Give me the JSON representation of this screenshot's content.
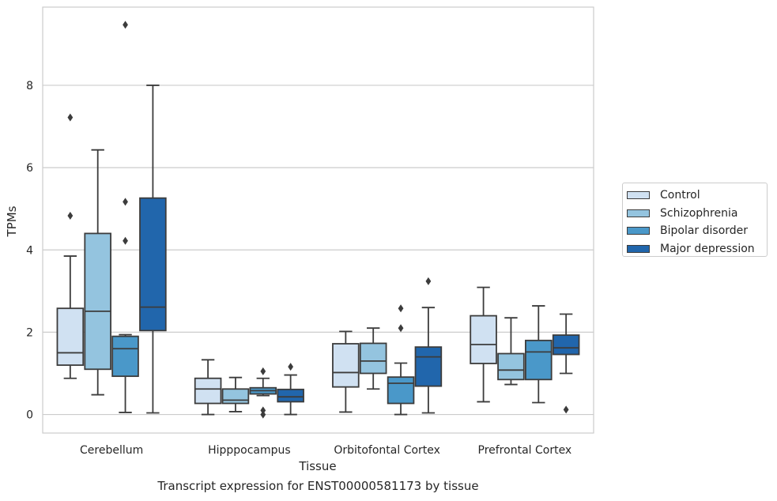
{
  "caption": "Transcript expression for ENST00000581173 by tissue",
  "chart_data": {
    "type": "box",
    "xlabel": "Tissue",
    "ylabel": "TPMs",
    "ylim": [
      -0.45,
      9.9
    ],
    "yticks": [
      0,
      2,
      4,
      6,
      8
    ],
    "grid": "horizontal",
    "legend_position": "right",
    "categories": [
      "Cerebellum",
      "Hipppocampus",
      "Orbitofontal Cortex",
      "Prefrontal Cortex"
    ],
    "series": [
      {
        "name": "Control",
        "color": "#d0e1f2",
        "boxes": [
          {
            "whislo": 0.88,
            "q1": 1.2,
            "med": 1.5,
            "q3": 2.58,
            "whishi": 3.85,
            "fliers": [
              4.83,
              7.22
            ]
          },
          {
            "whislo": 0.0,
            "q1": 0.27,
            "med": 0.62,
            "q3": 0.88,
            "whishi": 1.33,
            "fliers": []
          },
          {
            "whislo": 0.06,
            "q1": 0.67,
            "med": 1.02,
            "q3": 1.72,
            "whishi": 2.02,
            "fliers": []
          },
          {
            "whislo": 0.31,
            "q1": 1.24,
            "med": 1.7,
            "q3": 2.4,
            "whishi": 3.09,
            "fliers": []
          }
        ]
      },
      {
        "name": "Schizophrenia",
        "color": "#94c4df",
        "boxes": [
          {
            "whislo": 0.48,
            "q1": 1.1,
            "med": 2.51,
            "q3": 4.4,
            "whishi": 6.43,
            "fliers": []
          },
          {
            "whislo": 0.07,
            "q1": 0.27,
            "med": 0.35,
            "q3": 0.62,
            "whishi": 0.9,
            "fliers": []
          },
          {
            "whislo": 0.62,
            "q1": 1.0,
            "med": 1.3,
            "q3": 1.73,
            "whishi": 2.1,
            "fliers": []
          },
          {
            "whislo": 0.73,
            "q1": 0.85,
            "med": 1.08,
            "q3": 1.48,
            "whishi": 2.35,
            "fliers": []
          }
        ]
      },
      {
        "name": "Bipolar disorder",
        "color": "#4a98c9",
        "boxes": [
          {
            "whislo": 0.05,
            "q1": 0.93,
            "med": 1.6,
            "q3": 1.9,
            "whishi": 1.94,
            "fliers": [
              4.22,
              5.17,
              9.47
            ]
          },
          {
            "whislo": 0.46,
            "q1": 0.5,
            "med": 0.58,
            "q3": 0.65,
            "whishi": 0.88,
            "fliers": [
              0.0,
              0.1,
              1.05
            ]
          },
          {
            "whislo": 0.0,
            "q1": 0.27,
            "med": 0.76,
            "q3": 0.91,
            "whishi": 1.25,
            "fliers": [
              2.1,
              2.58
            ]
          },
          {
            "whislo": 0.29,
            "q1": 0.85,
            "med": 1.52,
            "q3": 1.8,
            "whishi": 2.64,
            "fliers": []
          }
        ]
      },
      {
        "name": "Major depression",
        "color": "#2166ac",
        "boxes": [
          {
            "whislo": 0.04,
            "q1": 2.04,
            "med": 2.61,
            "q3": 5.26,
            "whishi": 8.0,
            "fliers": []
          },
          {
            "whislo": 0.0,
            "q1": 0.31,
            "med": 0.43,
            "q3": 0.61,
            "whishi": 0.96,
            "fliers": [
              1.16
            ]
          },
          {
            "whislo": 0.04,
            "q1": 0.69,
            "med": 1.4,
            "q3": 1.64,
            "whishi": 2.6,
            "fliers": [
              3.24
            ]
          },
          {
            "whislo": 1.0,
            "q1": 1.46,
            "med": 1.62,
            "q3": 1.93,
            "whishi": 2.44,
            "fliers": [
              0.12
            ]
          }
        ]
      }
    ]
  }
}
